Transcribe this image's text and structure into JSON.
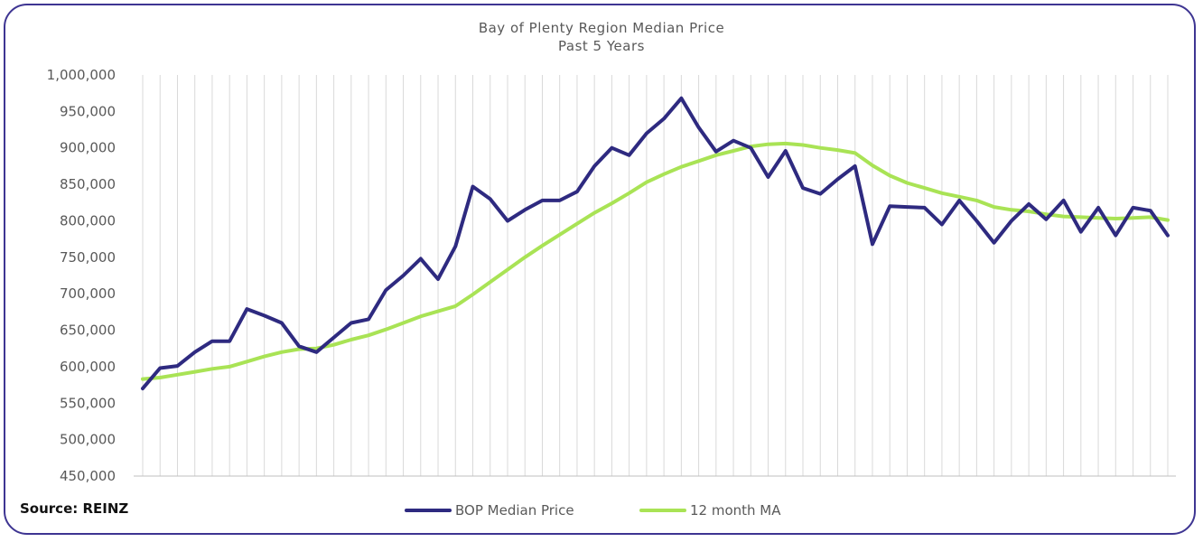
{
  "chart_data": {
    "type": "line",
    "title": "Bay of Plenty Region Median Price",
    "subtitle": "Past 5 Years",
    "ylim": [
      450000,
      1000000
    ],
    "yticks": [
      "1,000,000",
      "950,000",
      "900,000",
      "850,000",
      "800,000",
      "750,000",
      "700,000",
      "650,000",
      "600,000",
      "550,000",
      "500,000",
      "450,000"
    ],
    "ytick_values": [
      1000000,
      950000,
      900000,
      850000,
      800000,
      750000,
      700000,
      650000,
      600000,
      550000,
      500000,
      450000
    ],
    "grid": "vertical",
    "legend_position": "bottom",
    "series": [
      {
        "name": "BOP Median Price",
        "color": "#2e2a80",
        "values": [
          570000,
          598000,
          601000,
          620000,
          635000,
          635000,
          679000,
          670000,
          660000,
          628000,
          620000,
          640000,
          660000,
          665000,
          705000,
          725000,
          748000,
          720000,
          765000,
          847000,
          830000,
          800000,
          815000,
          828000,
          828000,
          840000,
          875000,
          900000,
          890000,
          920000,
          940000,
          968000,
          928000,
          895000,
          910000,
          900000,
          860000,
          896000,
          845000,
          837000,
          857000,
          875000,
          768000,
          820000,
          819000,
          818000,
          795000,
          828000,
          800000,
          770000,
          800000,
          823000,
          802000,
          828000,
          785000,
          818000,
          780000,
          818000,
          814000,
          780000
        ]
      },
      {
        "name": "12 month MA",
        "color": "#a9e355",
        "values": [
          583000,
          585000,
          589000,
          593000,
          597000,
          600000,
          607000,
          614000,
          620000,
          624000,
          625000,
          630000,
          637000,
          643000,
          651000,
          660000,
          669000,
          676000,
          683000,
          699000,
          716000,
          733000,
          750000,
          766000,
          781000,
          796000,
          811000,
          824000,
          838000,
          853000,
          864000,
          874000,
          882000,
          890000,
          896000,
          902000,
          905000,
          906000,
          904000,
          900000,
          897000,
          893000,
          876000,
          862000,
          852000,
          845000,
          838000,
          833000,
          828000,
          819000,
          815000,
          813000,
          809000,
          806000,
          805000,
          804000,
          803000,
          804000,
          805000,
          801000
        ]
      }
    ],
    "source": "Source: REINZ"
  }
}
